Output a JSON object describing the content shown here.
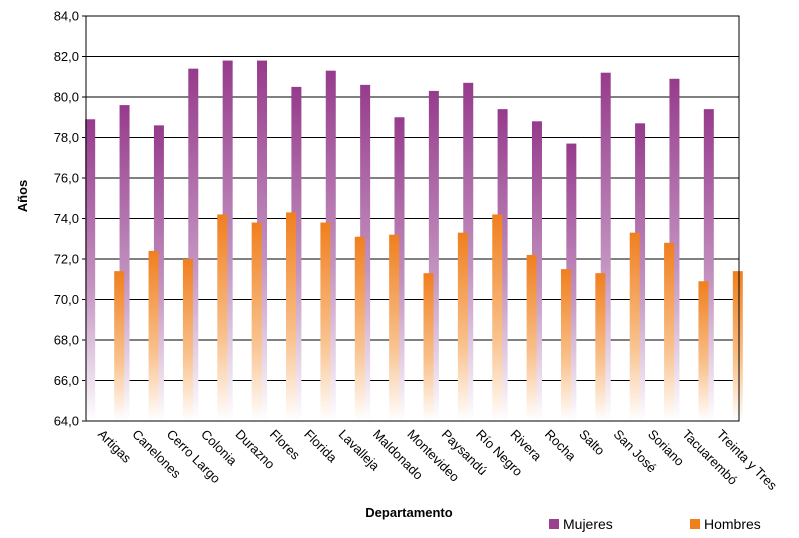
{
  "chart_data": {
    "type": "bar",
    "title": "",
    "xlabel": "Departamento",
    "ylabel": "Años",
    "ylim": [
      64,
      84
    ],
    "ytick_step": 2,
    "ytick_labels": [
      "64,0",
      "66,0",
      "68,0",
      "70,0",
      "72,0",
      "74,0",
      "76,0",
      "78,0",
      "80,0",
      "82,0",
      "84,0"
    ],
    "grid": true,
    "legend_position": "bottom-right",
    "categories": [
      "Artigas",
      "Canelones",
      "Cerro Largo",
      "Colonia",
      "Durazno",
      "Flores",
      "Florida",
      "Lavalleja",
      "Maldonado",
      "Montevideo",
      "Paysandú",
      "Río Negro",
      "Rivera",
      "Rocha",
      "Salto",
      "San José",
      "Soriano",
      "Tacuarembó",
      "Treinta y Tres"
    ],
    "series": [
      {
        "name": "Mujeres",
        "color": "#9b3f8f",
        "values": [
          78.9,
          79.6,
          78.6,
          81.4,
          81.8,
          81.8,
          80.5,
          81.3,
          80.6,
          79.0,
          80.3,
          80.7,
          79.4,
          78.8,
          77.7,
          81.2,
          78.7,
          80.9,
          79.4
        ]
      },
      {
        "name": "Hombres",
        "color": "#f07f1e",
        "values": [
          71.4,
          72.4,
          72.0,
          74.2,
          73.8,
          74.3,
          73.8,
          73.1,
          73.2,
          71.3,
          73.3,
          74.2,
          72.2,
          71.5,
          71.3,
          73.3,
          72.8,
          70.9,
          71.4
        ]
      }
    ]
  }
}
